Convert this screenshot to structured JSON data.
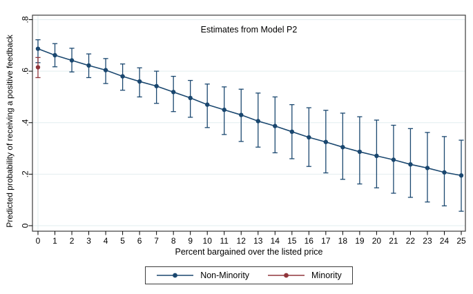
{
  "chart_data": {
    "type": "line",
    "title": "Estimates from Model P2",
    "xlabel": "Percent bargained over the listed price",
    "ylabel": "Predicted probability of receiving a positive feedback",
    "x_ticks": [
      0,
      1,
      2,
      3,
      4,
      5,
      6,
      7,
      8,
      9,
      10,
      11,
      12,
      13,
      14,
      15,
      16,
      17,
      18,
      19,
      20,
      21,
      22,
      23,
      24,
      25
    ],
    "y_ticks": {
      "values": [
        0,
        0.2,
        0.4,
        0.6,
        0.8
      ],
      "labels": [
        "0",
        ".2",
        ".4",
        ".6",
        ".8"
      ]
    },
    "ylim": [
      -0.02,
      0.82
    ],
    "grid": "horizontal",
    "legend_position": "bottom-center",
    "colors": {
      "grid": "#e2edef",
      "axis": "#3b3b3b",
      "text": "#000000",
      "background": "#ffffff"
    },
    "series": [
      {
        "name": "Non-Minority",
        "color": "#1a476f",
        "marker": "circle",
        "x": [
          0,
          1,
          2,
          3,
          4,
          5,
          6,
          7,
          8,
          9,
          10,
          11,
          12,
          13,
          14,
          15,
          16,
          17,
          18,
          19,
          20,
          21,
          22,
          23,
          24,
          25
        ],
        "y": [
          0.687,
          0.662,
          0.642,
          0.622,
          0.604,
          0.58,
          0.56,
          0.542,
          0.519,
          0.496,
          0.47,
          0.45,
          0.43,
          0.406,
          0.387,
          0.365,
          0.343,
          0.325,
          0.305,
          0.287,
          0.271,
          0.256,
          0.238,
          0.224,
          0.207,
          0.195
        ],
        "ci_low": [
          0.633,
          0.617,
          0.597,
          0.575,
          0.552,
          0.526,
          0.5,
          0.475,
          0.443,
          0.421,
          0.381,
          0.354,
          0.327,
          0.305,
          0.283,
          0.26,
          0.23,
          0.205,
          0.18,
          0.162,
          0.147,
          0.126,
          0.11,
          0.092,
          0.077,
          0.056
        ],
        "ci_high": [
          0.722,
          0.707,
          0.689,
          0.667,
          0.649,
          0.628,
          0.613,
          0.6,
          0.58,
          0.564,
          0.55,
          0.539,
          0.53,
          0.515,
          0.5,
          0.47,
          0.458,
          0.448,
          0.437,
          0.423,
          0.41,
          0.39,
          0.377,
          0.362,
          0.346,
          0.332
        ]
      },
      {
        "name": "Minority",
        "color": "#90353b",
        "marker": "circle",
        "x": [
          0
        ],
        "y": [
          0.615
        ],
        "ci_low": [
          0.575
        ],
        "ci_high": [
          0.653
        ]
      }
    ]
  }
}
